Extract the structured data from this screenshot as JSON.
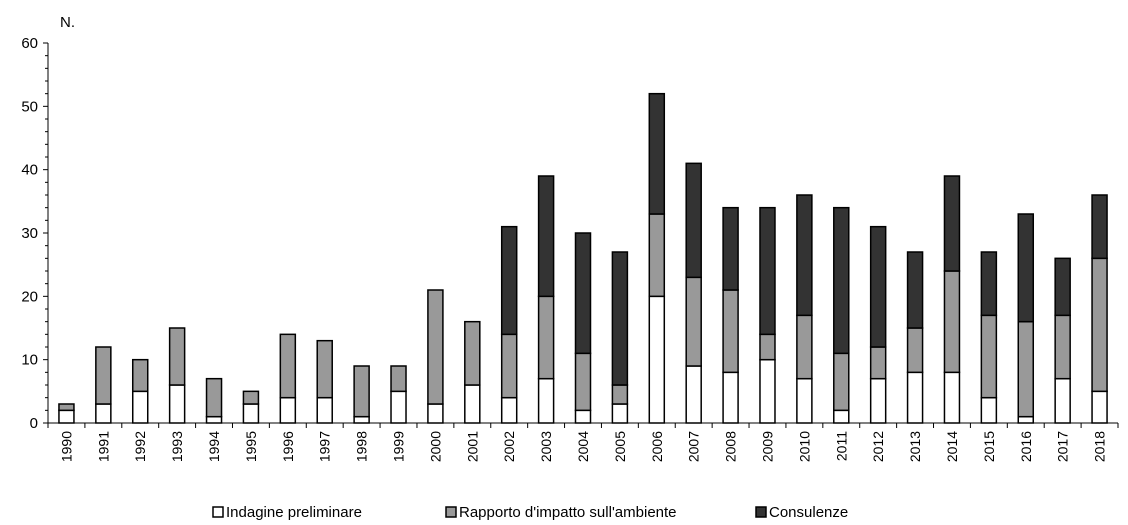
{
  "chart_data": {
    "type": "bar",
    "stacked": true,
    "ylabel": "N.",
    "ylim": [
      0,
      60
    ],
    "yticks": [
      0,
      10,
      20,
      30,
      40,
      50,
      60
    ],
    "legend_position": "bottom",
    "grid": false,
    "categories": [
      "1990",
      "1991",
      "1992",
      "1993",
      "1994",
      "1995",
      "1996",
      "1997",
      "1998",
      "1999",
      "2000",
      "2001",
      "2002",
      "2003",
      "2004",
      "2005",
      "2006",
      "2007",
      "2008",
      "2009",
      "2010",
      "2011",
      "2012",
      "2013",
      "2014",
      "2015",
      "2016",
      "2017",
      "2018"
    ],
    "series": [
      {
        "name": "Indagine preliminare",
        "color": "#ffffff",
        "values": [
          2,
          3,
          5,
          6,
          1,
          3,
          4,
          4,
          1,
          5,
          3,
          6,
          4,
          7,
          2,
          3,
          20,
          9,
          8,
          10,
          7,
          2,
          7,
          8,
          8,
          4,
          1,
          7,
          5
        ]
      },
      {
        "name": "Rapporto d'impatto sull'ambiente",
        "color": "#999999",
        "values": [
          1,
          9,
          5,
          9,
          6,
          2,
          10,
          9,
          8,
          4,
          18,
          10,
          10,
          13,
          9,
          3,
          13,
          14,
          13,
          4,
          10,
          9,
          5,
          7,
          16,
          13,
          15,
          10,
          21
        ]
      },
      {
        "name": "Consulenze",
        "color": "#333333",
        "values": [
          0,
          0,
          0,
          0,
          0,
          0,
          0,
          0,
          0,
          0,
          0,
          0,
          17,
          19,
          19,
          21,
          19,
          18,
          13,
          20,
          19,
          23,
          19,
          12,
          15,
          10,
          17,
          9,
          10
        ]
      }
    ]
  }
}
